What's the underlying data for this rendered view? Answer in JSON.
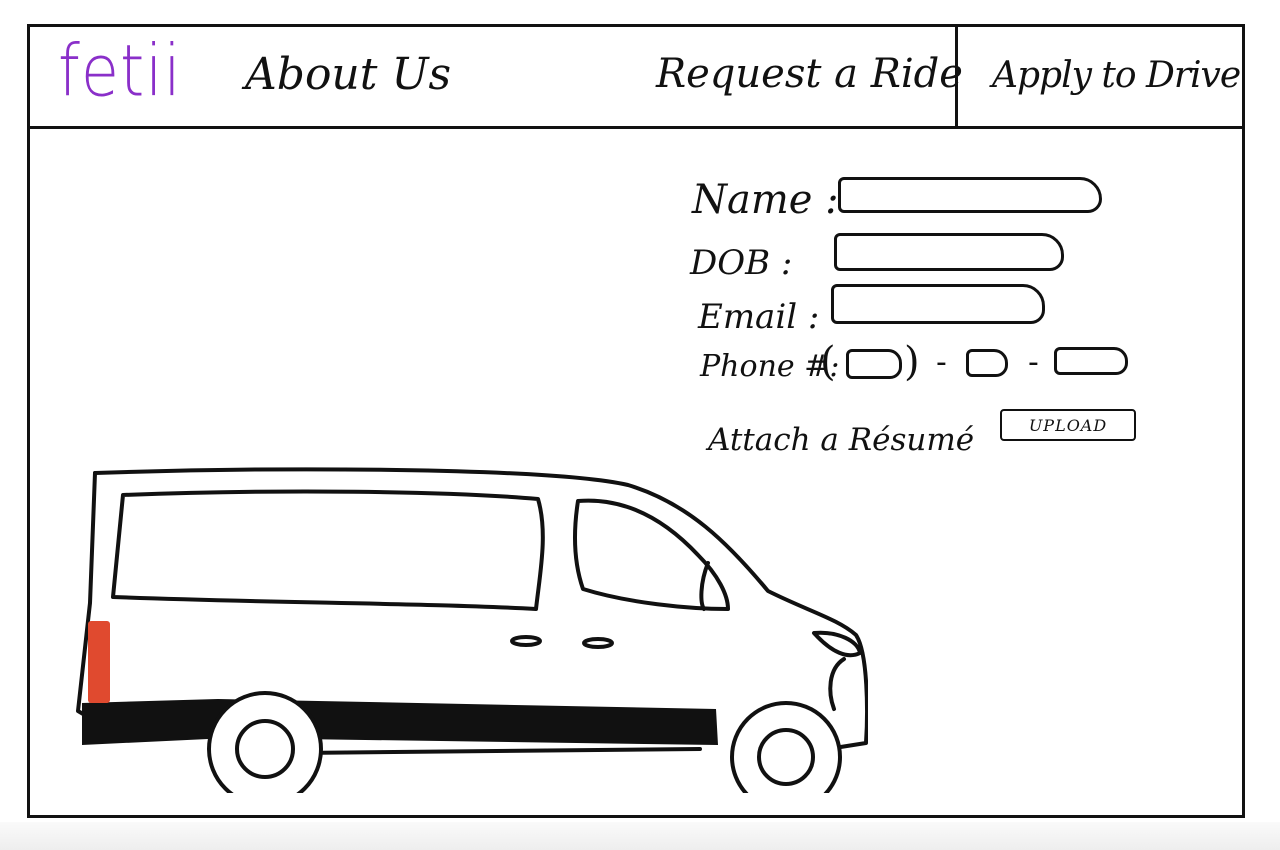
{
  "brand": {
    "logo_text": "fetii",
    "color": "#8a2fc9"
  },
  "nav": {
    "about": "About Us",
    "request": "Request a Ride",
    "apply": "Apply to Drive"
  },
  "form": {
    "name_label": "Name :",
    "dob_label": "DOB :",
    "email_label": "Email :",
    "phone_label": "Phone #:",
    "phone_open_paren": "(",
    "phone_close_paren": ")",
    "phone_dash": "-",
    "resume_label": "Attach a Résumé",
    "upload_label": "UPLOAD"
  },
  "illustration": {
    "subject": "van",
    "accent_color": "#e04a2f"
  }
}
